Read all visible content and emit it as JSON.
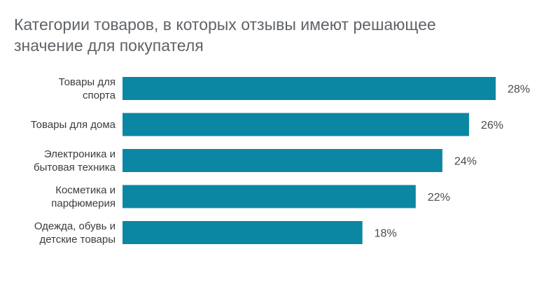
{
  "chart_data": {
    "type": "bar",
    "orientation": "horizontal",
    "title": "Категории товаров, в которых отзывы имеют решающее\nзначение для покупателя",
    "categories": [
      [
        "Товары для",
        "спорта"
      ],
      [
        "Товары для дома"
      ],
      [
        "Электроника и",
        "бытовая техника"
      ],
      [
        "Косметика и",
        "парфюмерия"
      ],
      [
        "Одежда, обувь и",
        "детские товары"
      ]
    ],
    "values": [
      28,
      26,
      24,
      22,
      18
    ],
    "value_labels": [
      "28%",
      "26%",
      "24%",
      "22%",
      "18%"
    ],
    "unit": "%",
    "bar_color": "#0b87a4",
    "grid": false,
    "legend": "none"
  }
}
